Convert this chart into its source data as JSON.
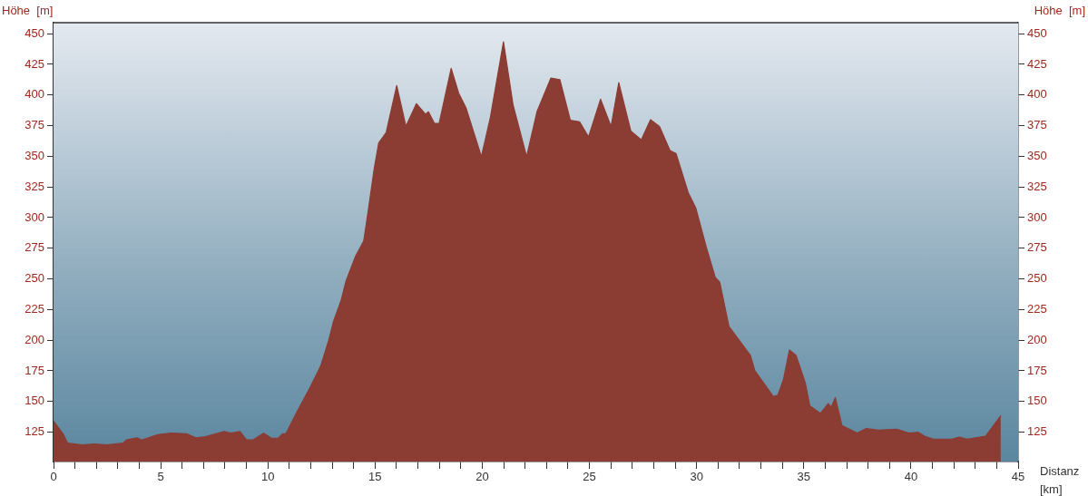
{
  "chart_data": {
    "type": "area",
    "xlabel": "Distanz [km]",
    "ylabel": "Höhe  [m]",
    "y2label": "Höhe  [m]",
    "x": [
      0,
      0.44,
      0.66,
      1.33,
      1.9,
      2.5,
      3.24,
      3.4,
      3.9,
      4.1,
      4.87,
      5.46,
      6.2,
      6.64,
      7.08,
      7.96,
      8.26,
      8.7,
      9.0,
      9.3,
      9.8,
      10.18,
      10.47,
      10.69,
      10.84,
      11.36,
      11.95,
      12.46,
      12.83,
      13.05,
      13.42,
      13.64,
      14.09,
      14.47,
      14.68,
      14.96,
      15.17,
      15.52,
      16.01,
      16.44,
      16.93,
      17.35,
      17.49,
      17.77,
      17.99,
      18.55,
      18.9,
      19.25,
      19.96,
      20.38,
      20.99,
      21.44,
      22.07,
      22.56,
      23.2,
      23.62,
      24.11,
      24.54,
      24.96,
      25.52,
      26.01,
      26.37,
      26.93,
      27.42,
      27.85,
      28.27,
      28.76,
      29.04,
      29.61,
      29.96,
      30.45,
      30.87,
      31.08,
      31.51,
      32.51,
      32.72,
      33.58,
      33.79,
      34.05,
      34.33,
      34.64,
      35.07,
      35.28,
      35.78,
      36.14,
      36.28,
      36.47,
      36.78,
      37.49,
      37.92,
      38.49,
      39.34,
      39.91,
      40.34,
      40.63,
      41.05,
      41.91,
      42.26,
      42.62,
      43.48,
      44.19
    ],
    "series": [
      {
        "color": "#8b3c33",
        "values": [
          134,
          123.7,
          116,
          114.7,
          115.3,
          114.7,
          116,
          118.6,
          120.4,
          118.6,
          123,
          124.2,
          123.7,
          120.4,
          121.2,
          125.5,
          124.2,
          125.5,
          118.6,
          118.6,
          124.2,
          119.9,
          119.9,
          123.7,
          123.7,
          141.7,
          160.9,
          178.8,
          199.4,
          214.7,
          232.7,
          248,
          268.6,
          280.9,
          305.5,
          340,
          360.9,
          369.5,
          407.7,
          374.4,
          392.9,
          384.3,
          386.3,
          376.9,
          376.9,
          421.7,
          401.5,
          389.2,
          349.8,
          381.8,
          443.4,
          391.7,
          349.8,
          386.8,
          413.8,
          412.6,
          379.4,
          378.1,
          365.8,
          396.6,
          374.4,
          410.1,
          370.7,
          363.4,
          379.9,
          374.4,
          354.7,
          352.3,
          320.3,
          308,
          276,
          251.3,
          247.3,
          211.2,
          187.6,
          175.1,
          154,
          155.2,
          167.7,
          192,
          187.6,
          165.2,
          146.5,
          140.3,
          148.3,
          145.3,
          153.2,
          130.4,
          124.2,
          127.9,
          126.7,
          127.4,
          124.2,
          124.9,
          121.7,
          119.3,
          119.3,
          121,
          119.3,
          121.7,
          138.4
        ]
      }
    ],
    "xlim": [
      0,
      45
    ],
    "xticks": [
      0,
      {
        "value": 1,
        "label": null
      },
      {
        "value": 2,
        "label": null
      },
      {
        "value": 3,
        "label": null
      },
      {
        "value": 4,
        "label": null
      },
      5,
      {
        "value": 6,
        "label": null
      },
      {
        "value": 7,
        "label": null
      },
      {
        "value": 8,
        "label": null
      },
      {
        "value": 9,
        "label": null
      },
      10,
      {
        "value": 11,
        "label": null
      },
      {
        "value": 12,
        "label": null
      },
      {
        "value": 13,
        "label": null
      },
      {
        "value": 14,
        "label": null
      },
      15,
      {
        "value": 16,
        "label": null
      },
      {
        "value": 17,
        "label": null
      },
      {
        "value": 18,
        "label": null
      },
      {
        "value": 19,
        "label": null
      },
      20,
      {
        "value": 21,
        "label": null
      },
      {
        "value": 22,
        "label": null
      },
      {
        "value": 23,
        "label": null
      },
      {
        "value": 24,
        "label": null
      },
      25,
      {
        "value": 26,
        "label": null
      },
      {
        "value": 27,
        "label": null
      },
      {
        "value": 28,
        "label": null
      },
      {
        "value": 29,
        "label": null
      },
      30,
      {
        "value": 31,
        "label": null
      },
      {
        "value": 32,
        "label": null
      },
      {
        "value": 33,
        "label": null
      },
      {
        "value": 34,
        "label": null
      },
      35,
      {
        "value": 36,
        "label": null
      },
      {
        "value": 37,
        "label": null
      },
      {
        "value": 38,
        "label": null
      },
      {
        "value": 39,
        "label": null
      },
      40,
      {
        "value": 41,
        "label": null
      },
      {
        "value": 42,
        "label": null
      },
      {
        "value": 43,
        "label": null
      },
      {
        "value": 44,
        "label": null
      },
      45
    ],
    "ylim": [
      101,
      459
    ],
    "yticks": [
      125,
      150,
      175,
      200,
      225,
      250,
      275,
      300,
      325,
      350,
      375,
      400,
      425,
      450
    ],
    "y2lim": [
      101,
      459
    ],
    "y2ticks": [
      125,
      150,
      175,
      200,
      225,
      250,
      275,
      300,
      325,
      350,
      375,
      400,
      425,
      450
    ],
    "grid": false
  }
}
